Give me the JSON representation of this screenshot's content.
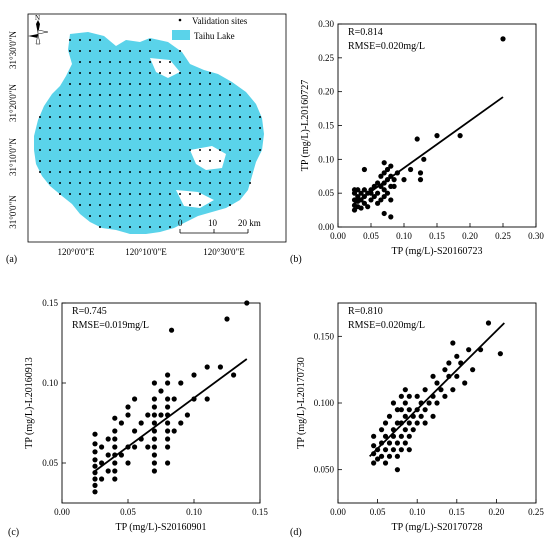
{
  "panel_labels": [
    "(a)",
    "(b)",
    "(c)",
    "(d)"
  ],
  "map": {
    "lat_labels": [
      "31°30'0\"N",
      "31°20'0\"N",
      "31°10'0\"N",
      "31°0'0\"N"
    ],
    "lon_labels": [
      "120°0'0\"E",
      "120°10'0\"E",
      "120°30'0\"E"
    ],
    "legend": {
      "sites": "Validation sites",
      "lake": "Taihu Lake"
    },
    "north": "N",
    "scalebar": {
      "labels": [
        "0",
        "10",
        "20 km"
      ]
    },
    "colors": {
      "lake": "#5ad3ea",
      "sites": "#000000"
    }
  },
  "chart_data": [
    {
      "panel": "b",
      "type": "scatter",
      "xlabel": "TP (mg/L)-S20160723",
      "ylabel": "TP (mg/L)-L20160727",
      "xlim": [
        0,
        0.3
      ],
      "ylim": [
        0,
        0.3
      ],
      "xticks": [
        "0.00",
        "0.05",
        "0.10",
        "0.15",
        "0.20",
        "0.25",
        "0.30"
      ],
      "yticks": [
        "0.00",
        "0.05",
        "0.10",
        "0.15",
        "0.20",
        "0.25",
        "0.30"
      ],
      "annotation": [
        "R=0.814",
        "RMSE=0.020mg/L"
      ],
      "fit_line": [
        [
          0.025,
          0.035
        ],
        [
          0.25,
          0.192
        ]
      ],
      "points": [
        [
          0.025,
          0.025
        ],
        [
          0.025,
          0.032
        ],
        [
          0.025,
          0.04
        ],
        [
          0.025,
          0.05
        ],
        [
          0.025,
          0.055
        ],
        [
          0.03,
          0.03
        ],
        [
          0.03,
          0.038
        ],
        [
          0.03,
          0.045
        ],
        [
          0.03,
          0.055
        ],
        [
          0.035,
          0.028
        ],
        [
          0.035,
          0.04
        ],
        [
          0.035,
          0.05
        ],
        [
          0.04,
          0.035
        ],
        [
          0.04,
          0.045
        ],
        [
          0.04,
          0.055
        ],
        [
          0.04,
          0.085
        ],
        [
          0.045,
          0.03
        ],
        [
          0.045,
          0.05
        ],
        [
          0.05,
          0.04
        ],
        [
          0.05,
          0.05
        ],
        [
          0.05,
          0.055
        ],
        [
          0.055,
          0.045
        ],
        [
          0.055,
          0.06
        ],
        [
          0.06,
          0.035
        ],
        [
          0.06,
          0.05
        ],
        [
          0.06,
          0.065
        ],
        [
          0.065,
          0.04
        ],
        [
          0.065,
          0.06
        ],
        [
          0.065,
          0.075
        ],
        [
          0.07,
          0.02
        ],
        [
          0.07,
          0.045
        ],
        [
          0.07,
          0.055
        ],
        [
          0.07,
          0.065
        ],
        [
          0.07,
          0.08
        ],
        [
          0.07,
          0.095
        ],
        [
          0.075,
          0.05
        ],
        [
          0.075,
          0.07
        ],
        [
          0.075,
          0.085
        ],
        [
          0.08,
          0.015
        ],
        [
          0.08,
          0.04
        ],
        [
          0.08,
          0.06
        ],
        [
          0.08,
          0.075
        ],
        [
          0.08,
          0.09
        ],
        [
          0.085,
          0.06
        ],
        [
          0.085,
          0.07
        ],
        [
          0.09,
          0.08
        ],
        [
          0.1,
          0.07
        ],
        [
          0.11,
          0.085
        ],
        [
          0.12,
          0.13
        ],
        [
          0.125,
          0.07
        ],
        [
          0.125,
          0.08
        ],
        [
          0.13,
          0.1
        ],
        [
          0.15,
          0.135
        ],
        [
          0.185,
          0.135
        ],
        [
          0.25,
          0.278
        ]
      ]
    },
    {
      "panel": "c",
      "type": "scatter",
      "xlabel": "TP (mg/L)-S20160901",
      "ylabel": "TP (mg/L)-L20160913",
      "xlim": [
        0,
        0.15
      ],
      "ylim": [
        0.025,
        0.15
      ],
      "xticks": [
        "0.00",
        "0.05",
        "0.10",
        "0.15"
      ],
      "yticks": [
        "0.05",
        "0.10",
        "0.15"
      ],
      "annotation": [
        "R=0.745",
        "RMSE=0.019mg/L"
      ],
      "fit_line": [
        [
          0.025,
          0.045
        ],
        [
          0.14,
          0.115
        ]
      ],
      "points": [
        [
          0.025,
          0.032
        ],
        [
          0.025,
          0.036
        ],
        [
          0.025,
          0.04
        ],
        [
          0.025,
          0.044
        ],
        [
          0.025,
          0.048
        ],
        [
          0.025,
          0.052
        ],
        [
          0.025,
          0.057
        ],
        [
          0.025,
          0.062
        ],
        [
          0.025,
          0.068
        ],
        [
          0.03,
          0.04
        ],
        [
          0.03,
          0.05
        ],
        [
          0.03,
          0.06
        ],
        [
          0.035,
          0.045
        ],
        [
          0.035,
          0.055
        ],
        [
          0.035,
          0.065
        ],
        [
          0.04,
          0.04
        ],
        [
          0.04,
          0.045
        ],
        [
          0.04,
          0.05
        ],
        [
          0.04,
          0.055
        ],
        [
          0.04,
          0.06
        ],
        [
          0.04,
          0.065
        ],
        [
          0.04,
          0.07
        ],
        [
          0.04,
          0.078
        ],
        [
          0.045,
          0.055
        ],
        [
          0.045,
          0.075
        ],
        [
          0.05,
          0.05
        ],
        [
          0.05,
          0.06
        ],
        [
          0.05,
          0.08
        ],
        [
          0.05,
          0.085
        ],
        [
          0.055,
          0.06
        ],
        [
          0.055,
          0.07
        ],
        [
          0.055,
          0.09
        ],
        [
          0.06,
          0.065
        ],
        [
          0.06,
          0.075
        ],
        [
          0.065,
          0.06
        ],
        [
          0.065,
          0.08
        ],
        [
          0.07,
          0.045
        ],
        [
          0.07,
          0.05
        ],
        [
          0.07,
          0.055
        ],
        [
          0.07,
          0.06
        ],
        [
          0.07,
          0.065
        ],
        [
          0.07,
          0.07
        ],
        [
          0.07,
          0.075
        ],
        [
          0.07,
          0.08
        ],
        [
          0.07,
          0.085
        ],
        [
          0.07,
          0.09
        ],
        [
          0.07,
          0.1
        ],
        [
          0.075,
          0.08
        ],
        [
          0.075,
          0.095
        ],
        [
          0.08,
          0.05
        ],
        [
          0.08,
          0.06
        ],
        [
          0.08,
          0.065
        ],
        [
          0.08,
          0.07
        ],
        [
          0.08,
          0.075
        ],
        [
          0.08,
          0.08
        ],
        [
          0.08,
          0.085
        ],
        [
          0.08,
          0.09
        ],
        [
          0.08,
          0.1
        ],
        [
          0.08,
          0.105
        ],
        [
          0.085,
          0.07
        ],
        [
          0.085,
          0.09
        ],
        [
          0.09,
          0.075
        ],
        [
          0.09,
          0.1
        ],
        [
          0.095,
          0.08
        ],
        [
          0.1,
          0.09
        ],
        [
          0.1,
          0.105
        ],
        [
          0.11,
          0.09
        ],
        [
          0.11,
          0.11
        ],
        [
          0.12,
          0.11
        ],
        [
          0.125,
          0.14
        ],
        [
          0.13,
          0.105
        ],
        [
          0.14,
          0.15
        ],
        [
          0.083,
          0.133
        ]
      ]
    },
    {
      "panel": "d",
      "type": "scatter",
      "xlabel": "TP (mg/L)-S20170728",
      "ylabel": "TP (mg/L)-L20170730",
      "xlim": [
        0,
        0.25
      ],
      "ylim": [
        0.025,
        0.175
      ],
      "xticks": [
        "0.00",
        "0.05",
        "0.10",
        "0.15",
        "0.20",
        "0.25"
      ],
      "yticks": [
        "0.050",
        "0.100",
        "0.150"
      ],
      "annotation": [
        "R=0.810",
        "RMSE=0.020mg/L"
      ],
      "fit_line": [
        [
          0.04,
          0.06
        ],
        [
          0.21,
          0.16
        ]
      ],
      "points": [
        [
          0.045,
          0.055
        ],
        [
          0.045,
          0.062
        ],
        [
          0.045,
          0.068
        ],
        [
          0.045,
          0.075
        ],
        [
          0.05,
          0.058
        ],
        [
          0.05,
          0.065
        ],
        [
          0.055,
          0.06
        ],
        [
          0.055,
          0.07
        ],
        [
          0.055,
          0.08
        ],
        [
          0.06,
          0.055
        ],
        [
          0.06,
          0.065
        ],
        [
          0.06,
          0.075
        ],
        [
          0.06,
          0.085
        ],
        [
          0.065,
          0.06
        ],
        [
          0.065,
          0.07
        ],
        [
          0.065,
          0.09
        ],
        [
          0.07,
          0.065
        ],
        [
          0.07,
          0.075
        ],
        [
          0.07,
          0.08
        ],
        [
          0.07,
          0.1
        ],
        [
          0.075,
          0.05
        ],
        [
          0.075,
          0.06
        ],
        [
          0.075,
          0.07
        ],
        [
          0.075,
          0.085
        ],
        [
          0.075,
          0.095
        ],
        [
          0.08,
          0.065
        ],
        [
          0.08,
          0.075
        ],
        [
          0.08,
          0.085
        ],
        [
          0.08,
          0.095
        ],
        [
          0.08,
          0.105
        ],
        [
          0.085,
          0.07
        ],
        [
          0.085,
          0.08
        ],
        [
          0.085,
          0.09
        ],
        [
          0.085,
          0.1
        ],
        [
          0.085,
          0.11
        ],
        [
          0.09,
          0.065
        ],
        [
          0.09,
          0.075
        ],
        [
          0.09,
          0.085
        ],
        [
          0.09,
          0.095
        ],
        [
          0.09,
          0.105
        ],
        [
          0.095,
          0.08
        ],
        [
          0.095,
          0.09
        ],
        [
          0.1,
          0.085
        ],
        [
          0.1,
          0.095
        ],
        [
          0.1,
          0.105
        ],
        [
          0.105,
          0.09
        ],
        [
          0.105,
          0.1
        ],
        [
          0.11,
          0.085
        ],
        [
          0.11,
          0.095
        ],
        [
          0.11,
          0.11
        ],
        [
          0.115,
          0.1
        ],
        [
          0.12,
          0.09
        ],
        [
          0.12,
          0.105
        ],
        [
          0.12,
          0.12
        ],
        [
          0.125,
          0.1
        ],
        [
          0.125,
          0.115
        ],
        [
          0.13,
          0.11
        ],
        [
          0.135,
          0.105
        ],
        [
          0.135,
          0.125
        ],
        [
          0.14,
          0.12
        ],
        [
          0.14,
          0.13
        ],
        [
          0.145,
          0.11
        ],
        [
          0.145,
          0.145
        ],
        [
          0.15,
          0.12
        ],
        [
          0.15,
          0.135
        ],
        [
          0.155,
          0.13
        ],
        [
          0.16,
          0.115
        ],
        [
          0.165,
          0.14
        ],
        [
          0.17,
          0.125
        ],
        [
          0.18,
          0.14
        ],
        [
          0.19,
          0.16
        ],
        [
          0.205,
          0.137
        ]
      ]
    }
  ]
}
